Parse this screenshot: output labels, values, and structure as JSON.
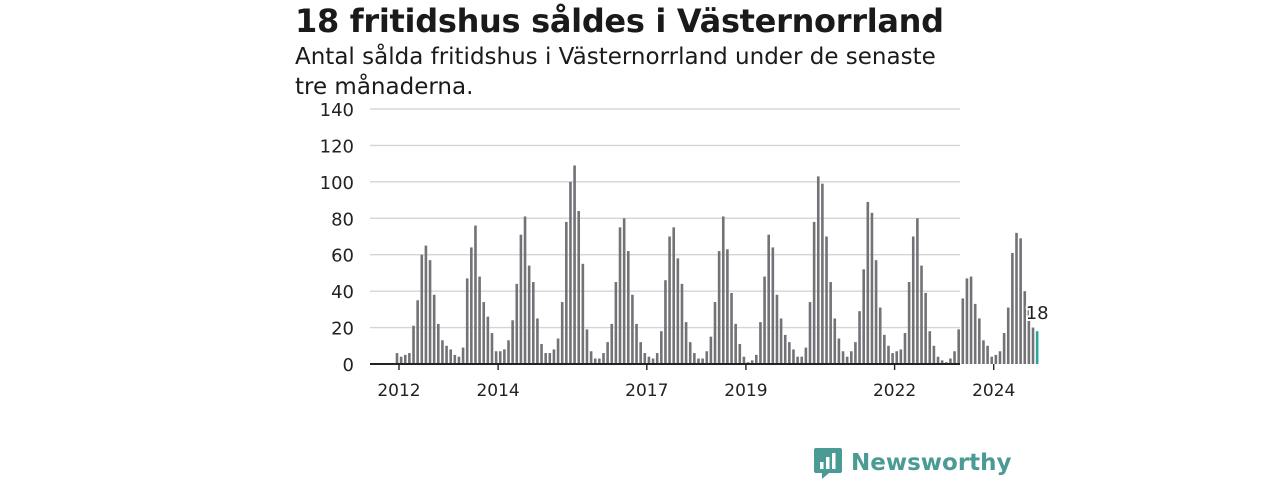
{
  "title": "18 fritidshus såldes i Västernorrland",
  "subtitle": "Antal sålda fritidshus i Västernorrland under de senaste tre månaderna.",
  "brand": {
    "name": "Newsworthy",
    "icon": "newsworthy-logo-icon",
    "color": "#4a9b93"
  },
  "colors": {
    "bar": "#727277",
    "highlight": "#26a79b",
    "grid": "#d5d5d5",
    "axis": "#222222"
  },
  "chart_data": {
    "type": "bar",
    "title": "18 fritidshus såldes i Västernorrland",
    "subtitle": "Antal sålda fritidshus i Västernorrland under de senaste tre månaderna.",
    "xlabel": "",
    "ylabel": "",
    "ylim": [
      0,
      140
    ],
    "yticks": [
      0,
      20,
      40,
      60,
      80,
      100,
      120,
      140
    ],
    "xtick_labels": [
      {
        "label": "2012",
        "year": 2012
      },
      {
        "label": "2014",
        "year": 2014
      },
      {
        "label": "2017",
        "year": 2017
      },
      {
        "label": "2019",
        "year": 2019
      },
      {
        "label": "2022",
        "year": 2022
      },
      {
        "label": "2024",
        "year": 2024
      }
    ],
    "grid": true,
    "bar_unit": "Rullande tremånadersperiod (månadsvis)",
    "start": "2012-01",
    "highlight_label": "18",
    "values": [
      6,
      4,
      5,
      6,
      21,
      35,
      60,
      65,
      57,
      38,
      22,
      13,
      10,
      8,
      5,
      4,
      9,
      47,
      64,
      76,
      48,
      34,
      26,
      17,
      7,
      7,
      8,
      13,
      24,
      44,
      71,
      81,
      54,
      45,
      25,
      11,
      6,
      6,
      8,
      14,
      34,
      78,
      100,
      109,
      84,
      55,
      19,
      7,
      3,
      3,
      6,
      12,
      22,
      45,
      75,
      80,
      62,
      38,
      22,
      12,
      6,
      4,
      3,
      6,
      18,
      46,
      70,
      75,
      58,
      44,
      23,
      12,
      6,
      3,
      3,
      7,
      15,
      34,
      62,
      81,
      63,
      39,
      22,
      11,
      4,
      1,
      2,
      5,
      23,
      48,
      71,
      64,
      38,
      25,
      16,
      12,
      8,
      4,
      4,
      9,
      34,
      78,
      103,
      99,
      70,
      45,
      25,
      14,
      7,
      4,
      7,
      12,
      29,
      52,
      89,
      83,
      57,
      31,
      16,
      10,
      6,
      7,
      8,
      17,
      45,
      70,
      80,
      54,
      39,
      18,
      10,
      4,
      2,
      1,
      3,
      7,
      19,
      36,
      47,
      48,
      33,
      25,
      13,
      10,
      4,
      5,
      7,
      17,
      31,
      61,
      72,
      69,
      40,
      32,
      20,
      18
    ]
  }
}
